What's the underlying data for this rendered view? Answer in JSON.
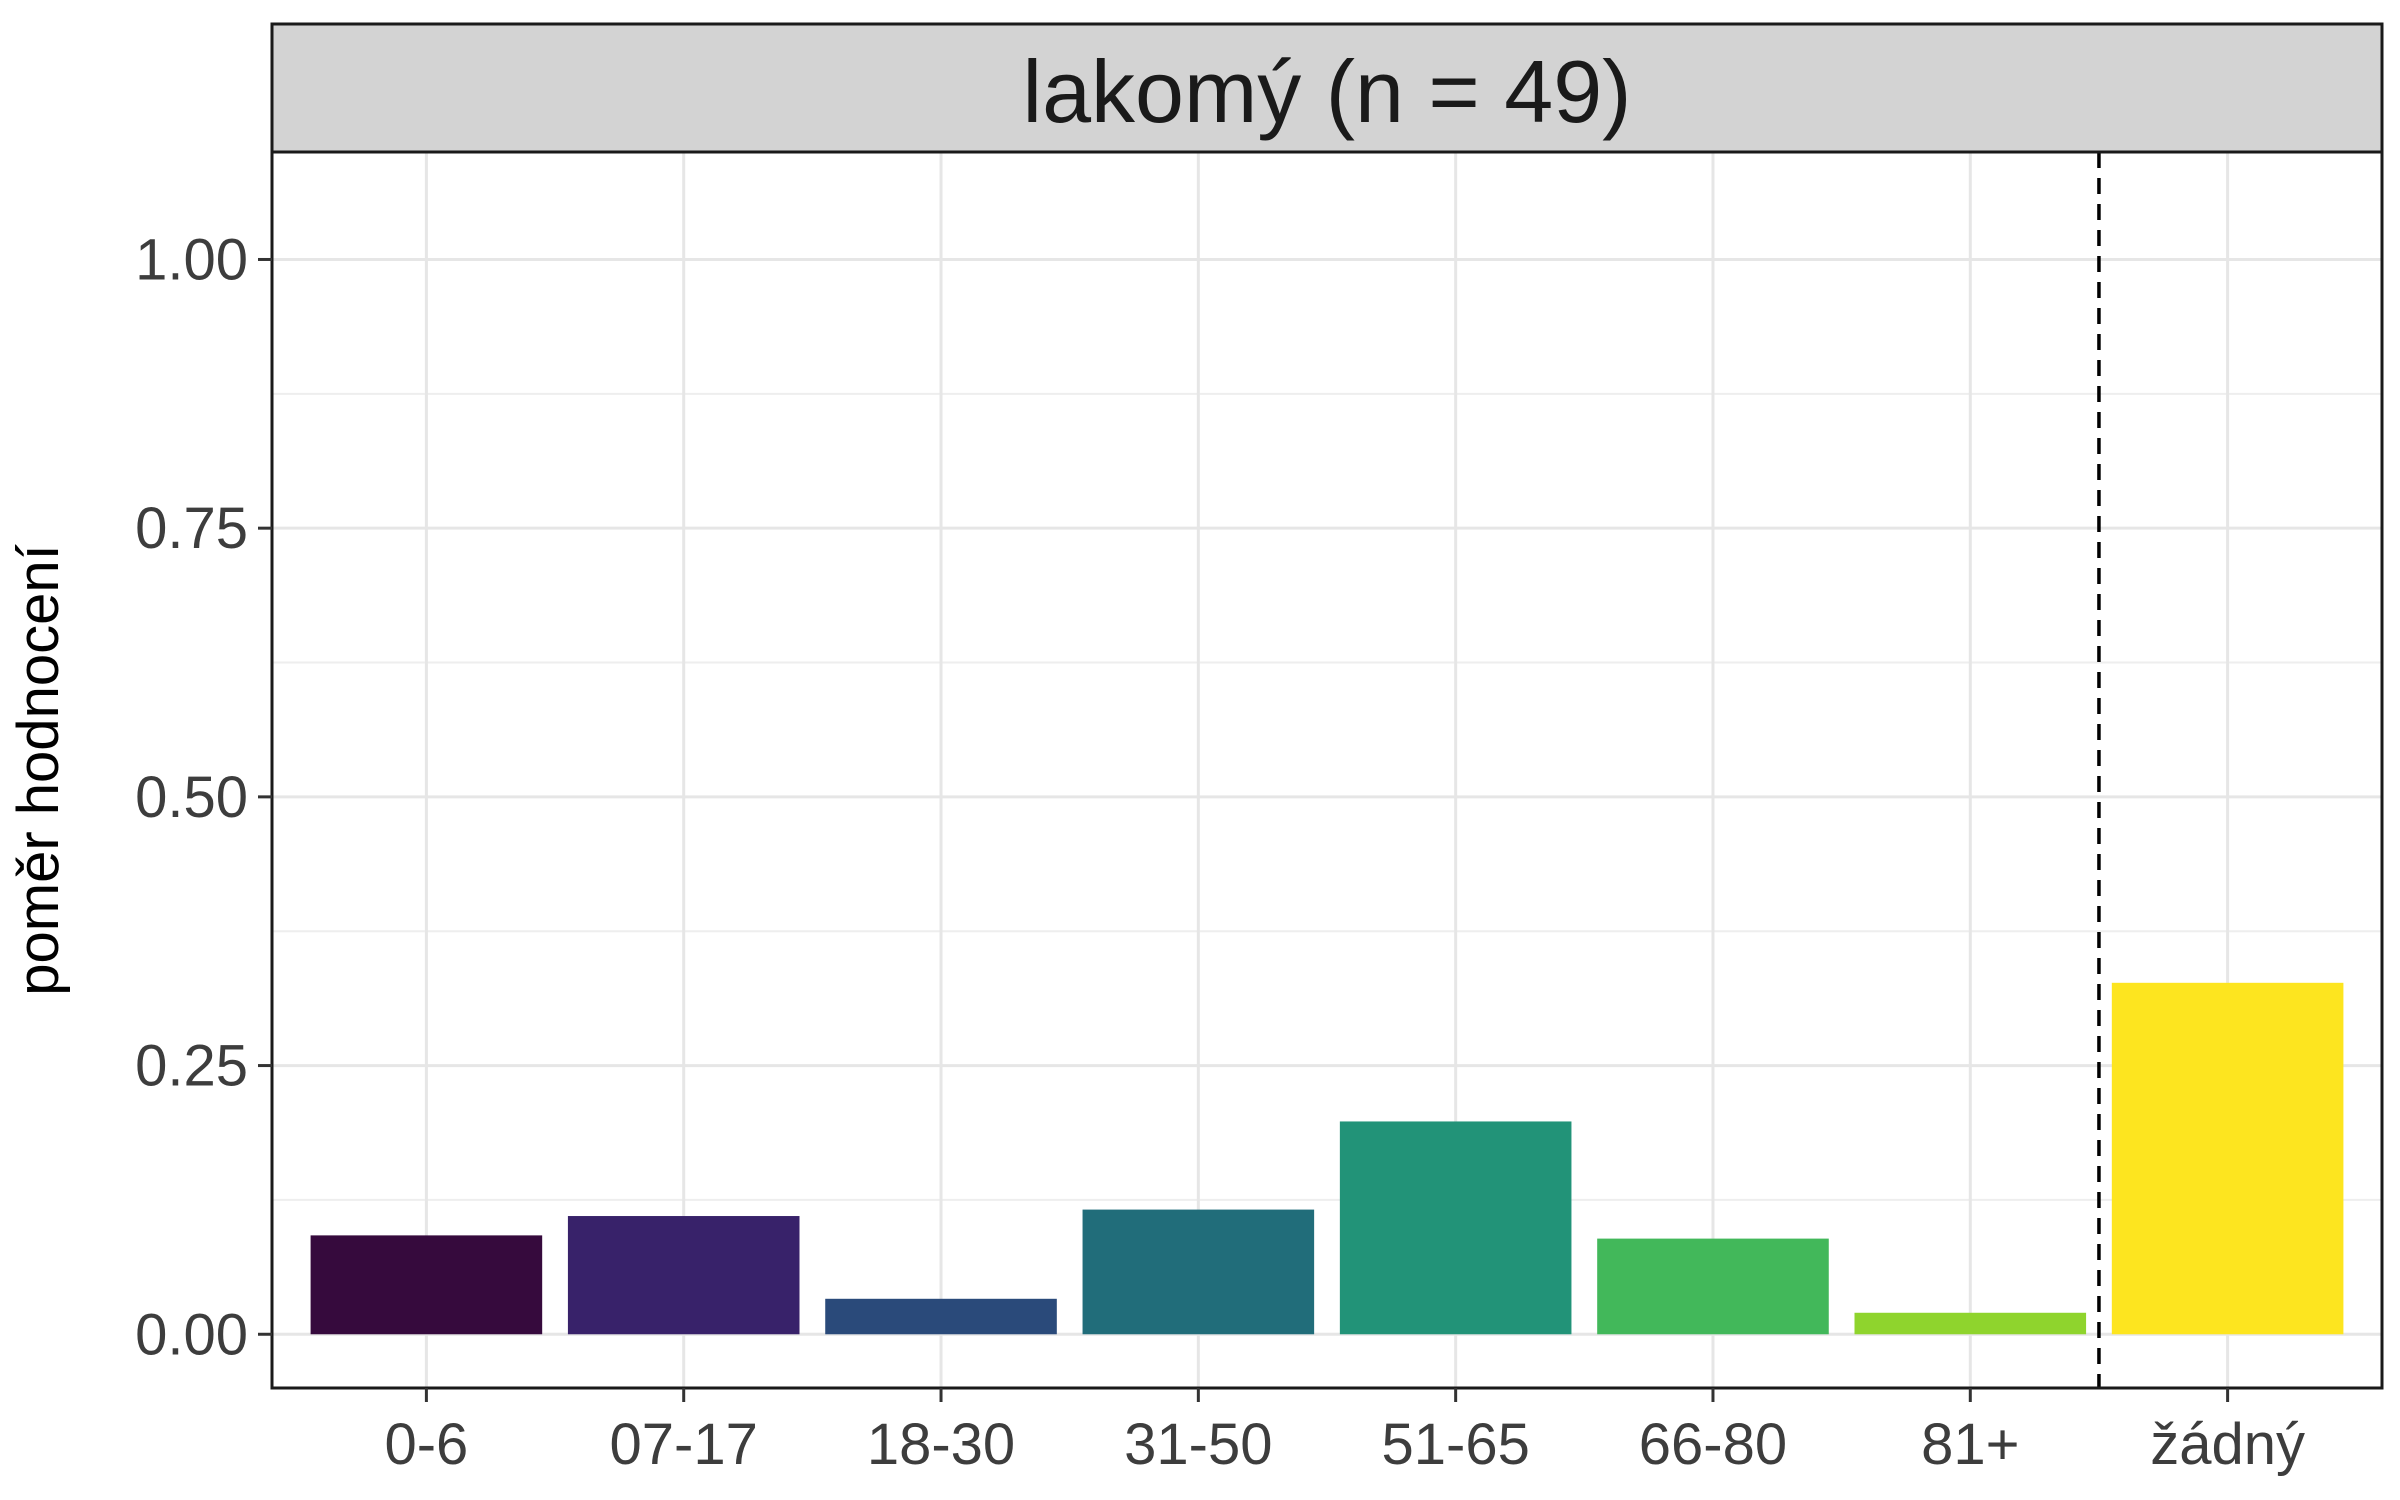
{
  "chart_data": {
    "type": "bar",
    "strip_title": "lakomý (n = 49)",
    "ylabel": "poměr hodnocení",
    "xlabel": "",
    "ylim": [
      -0.05,
      1.1
    ],
    "yticks": [
      0.0,
      0.25,
      0.5,
      0.75,
      1.0
    ],
    "ytick_labels": [
      "0.00",
      "0.25",
      "0.50",
      "0.75",
      "1.00"
    ],
    "grid": true,
    "categories": [
      "0-6",
      "07-17",
      "18-30",
      "31-50",
      "51-65",
      "66-80",
      "81+",
      "žádný"
    ],
    "values": [
      0.092,
      0.11,
      0.033,
      0.116,
      0.198,
      0.089,
      0.02,
      0.327
    ],
    "colors": [
      "#360a3d",
      "#38226a",
      "#2a4a7a",
      "#216d7a",
      "#229378",
      "#42b85a",
      "#8fd42d",
      "#fde51f"
    ],
    "reference_line_between": [
      "81+",
      "žádný"
    ]
  }
}
